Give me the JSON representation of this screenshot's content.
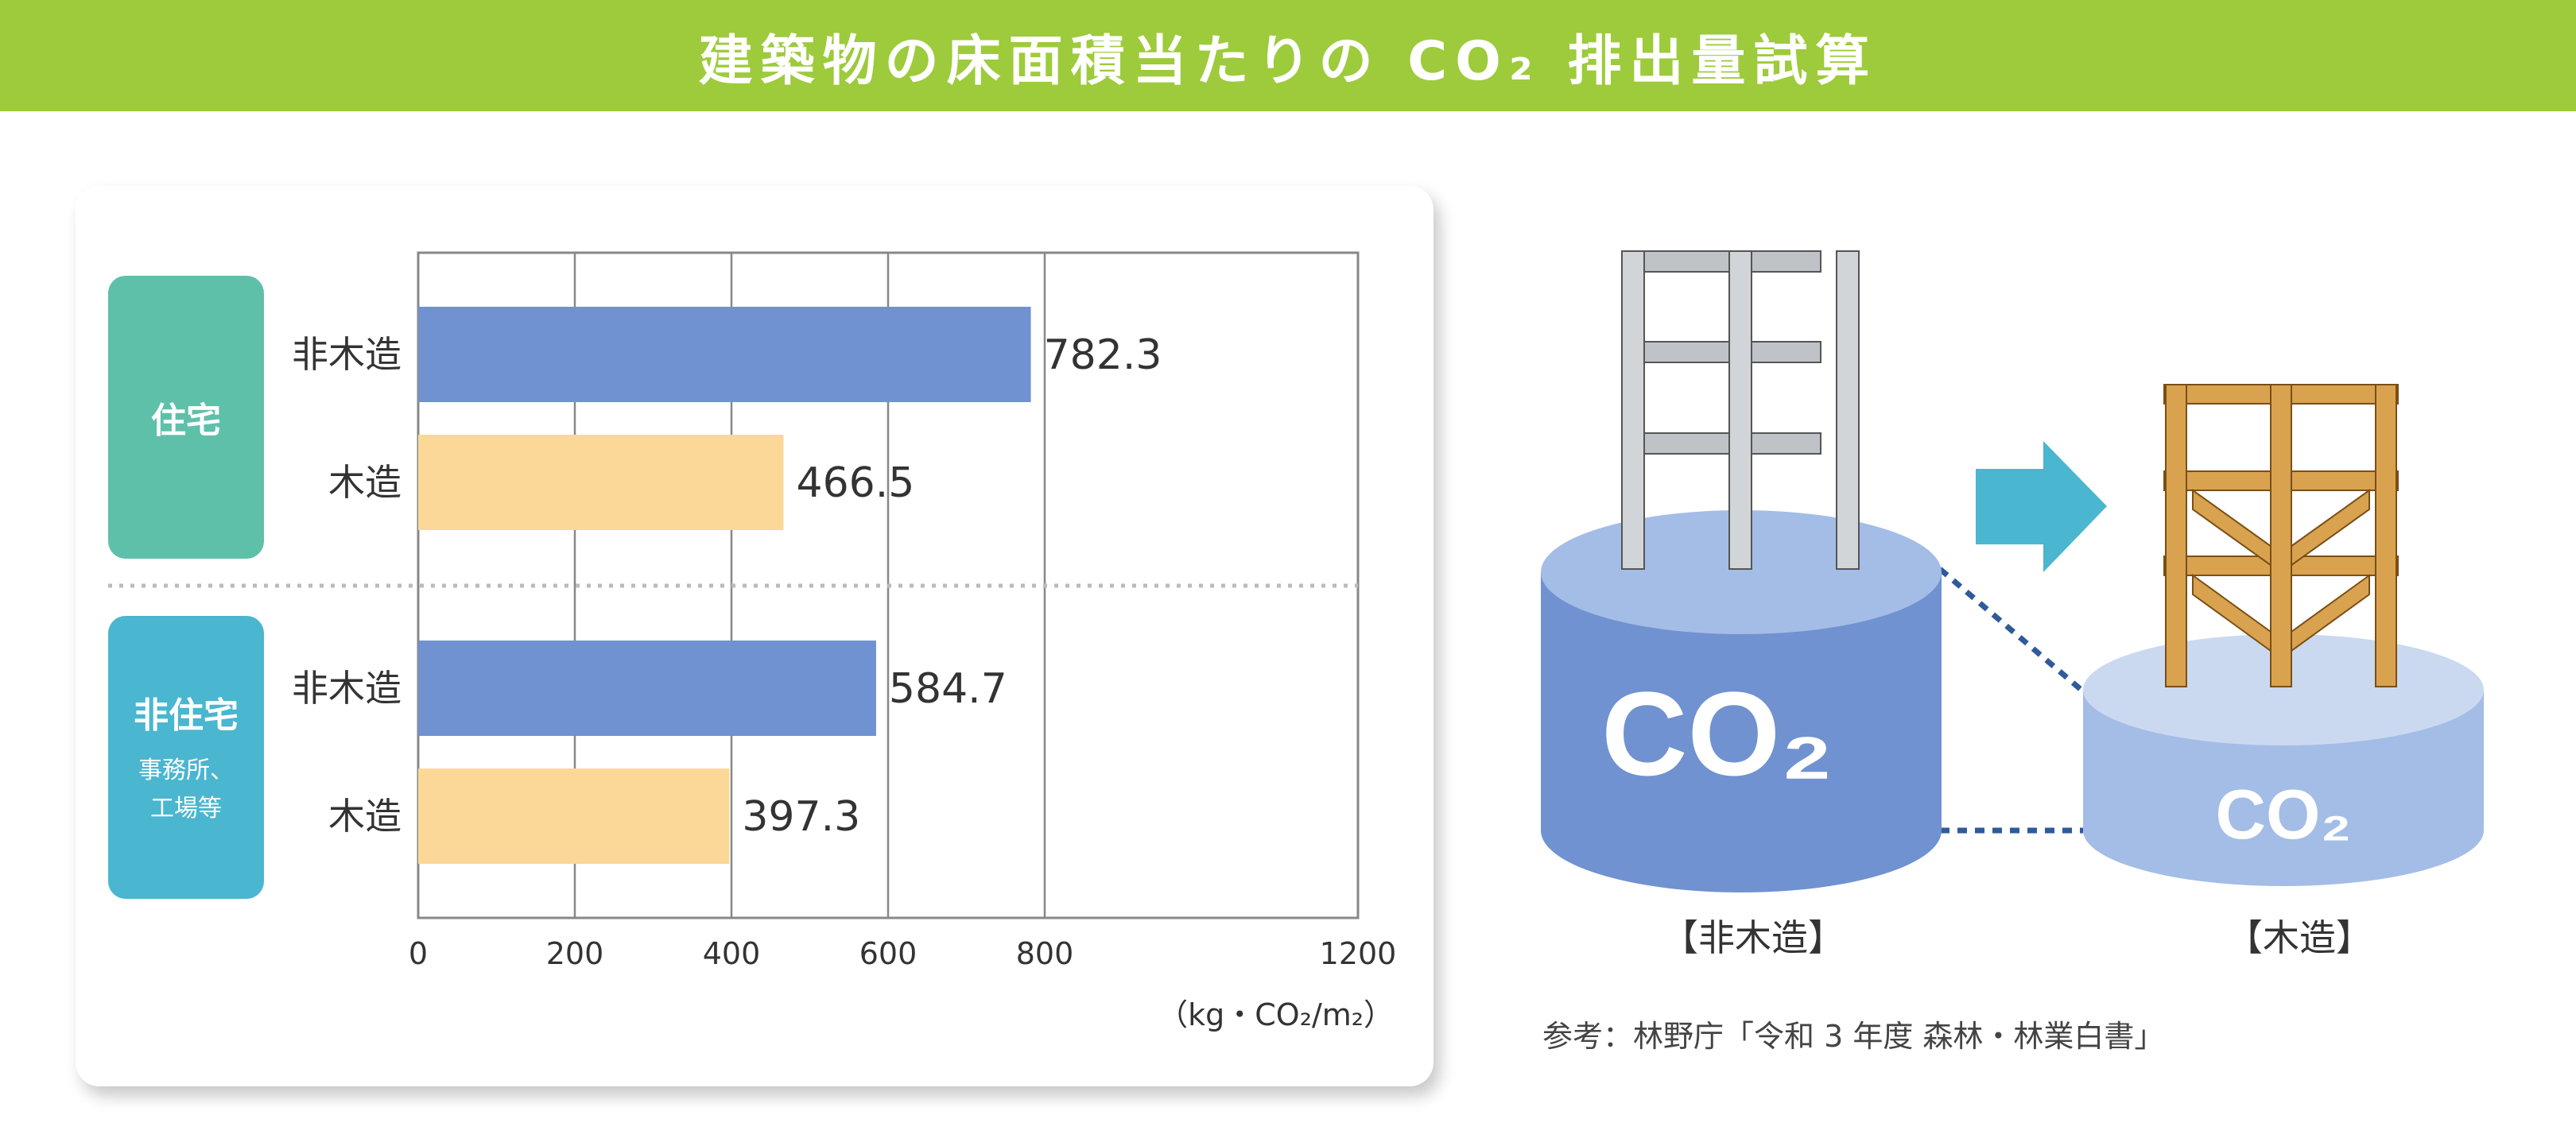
{
  "header": {
    "title": "建築物の床面積当たりの CO₂ 排出量試算"
  },
  "groups": {
    "residential": {
      "name": "住宅",
      "sub": ""
    },
    "nonresidential": {
      "name": "非住宅",
      "sub": "事務所、\n工場等"
    }
  },
  "chart_data": {
    "type": "bar",
    "orientation": "horizontal",
    "categories": [
      "非木造",
      "木造",
      "非木造",
      "木造"
    ],
    "group_of_category": [
      "住宅",
      "住宅",
      "非住宅",
      "非住宅"
    ],
    "values": [
      782.3,
      466.5,
      584.7,
      397.3
    ],
    "value_labels": [
      "782.3",
      "466.5",
      "584.7",
      "397.3"
    ],
    "bar_colors": [
      "#7092d0",
      "#fbd898",
      "#7092d0",
      "#fbd898"
    ],
    "xlim": [
      0,
      1200
    ],
    "xticks": [
      0,
      200,
      400,
      600,
      800,
      1200
    ],
    "xtick_labels": [
      "0",
      "200",
      "400",
      "600",
      "800",
      "1200"
    ],
    "xlabel": "（kg・CO₂/m₂）",
    "grid": true
  },
  "diagram": {
    "left_label": "【非木造】",
    "right_label": "【木造】",
    "left_cylinder_text": "CO₂",
    "right_cylinder_text": "CO₂",
    "arrow_color": "#4ab6cf",
    "left_cylinder_color": "#7092d0",
    "right_cylinder_color": "#a3bde7"
  },
  "reference": "参考：林野庁「令和 3 年度 森林・林業白書」"
}
